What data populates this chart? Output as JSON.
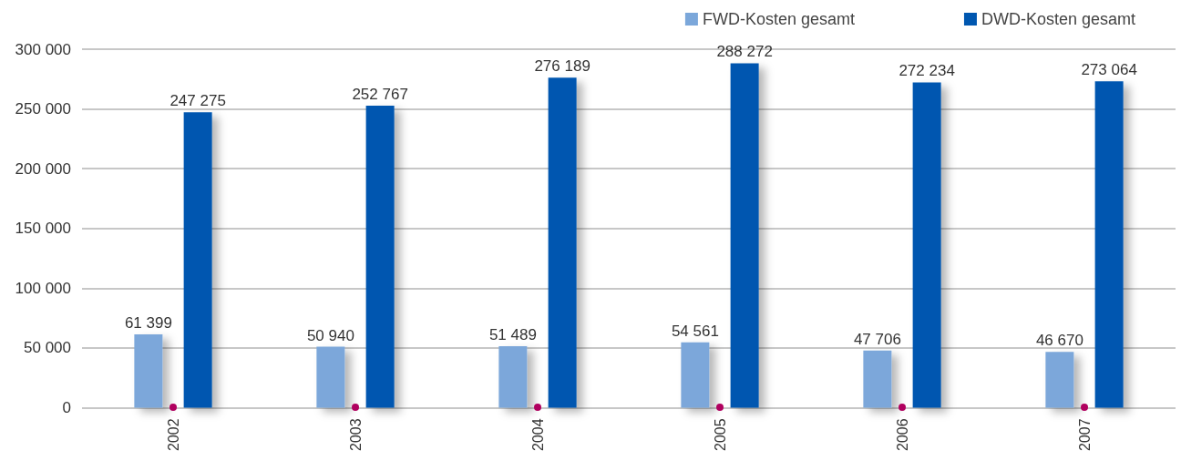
{
  "chart_data": {
    "type": "bar",
    "categories": [
      "2002",
      "2003",
      "2004",
      "2005",
      "2006",
      "2007"
    ],
    "series": [
      {
        "name": "FWD-Kosten gesamt",
        "color": "#7ba7da",
        "values": [
          61399,
          50940,
          51489,
          54561,
          47706,
          46670
        ],
        "value_labels": [
          "61 399",
          "50 940",
          "51 489",
          "54 561",
          "47 706",
          "46 670"
        ]
      },
      {
        "name": "DWD-Kosten gesamt",
        "color": "#0057b0",
        "values": [
          247275,
          252767,
          276189,
          288272,
          272234,
          273064
        ],
        "value_labels": [
          "247 275",
          "252 767",
          "276 189",
          "288 272",
          "272 234",
          "273 064"
        ]
      }
    ],
    "ylim": [
      0,
      300000
    ],
    "yticks": [
      0,
      {
        "value": 50000,
        "label": "50 000"
      },
      {
        "value": 100000,
        "label": "100 000"
      },
      {
        "value": 150000,
        "label": "150 000"
      },
      {
        "value": 200000,
        "label": "200 000"
      },
      {
        "value": 250000,
        "label": "250 000"
      },
      {
        "value": 300000,
        "label": "300 000"
      }
    ],
    "grid": "y",
    "legend": "top right"
  }
}
